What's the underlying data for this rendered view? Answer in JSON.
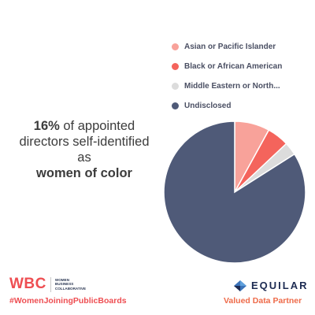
{
  "headline": {
    "percent": "16%",
    "line1_rest": " of appointed",
    "line2": "directors self-identified as",
    "line3": "women of color"
  },
  "chart_data": {
    "type": "pie",
    "title": "",
    "start_angle_deg": 0,
    "direction": "clockwise",
    "legend_position": "top-right",
    "slices": [
      {
        "label": "Asian or Pacific Islander",
        "value": 8,
        "color": "#f8a29a"
      },
      {
        "label": "Black or African American",
        "value": 5,
        "color": "#f4645c"
      },
      {
        "label": "Middle Eastern or North...",
        "value": 3,
        "color": "#dcdcdc"
      },
      {
        "label": "Undisclosed",
        "value": 84,
        "color": "#4f5a78"
      }
    ]
  },
  "footer": {
    "wbc_mark": "WBC",
    "wbc_words": [
      "WOMEN",
      "BUSINESS",
      "COLLABORATIVE"
    ],
    "hashtag": "#WomenJoiningPublicBoards",
    "equilar_name": "EQUILAR",
    "equilar_icon": "equilar-diamond-icon",
    "partner_text": "Valued Data Partner"
  }
}
